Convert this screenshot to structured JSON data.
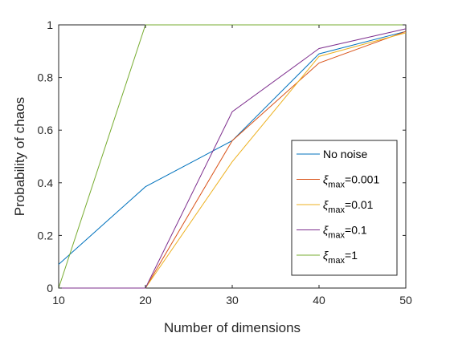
{
  "chart_data": {
    "type": "line",
    "xlabel": "Number of dimensions",
    "ylabel": "Probability of chaos",
    "xlim": [
      10,
      50
    ],
    "ylim": [
      0,
      1
    ],
    "xticks": [
      "10",
      "20",
      "30",
      "40",
      "50"
    ],
    "yticks": [
      "0",
      "0.2",
      "0.4",
      "0.6",
      "0.8",
      "1"
    ],
    "x": [
      10,
      20,
      30,
      40,
      50
    ],
    "grid": false,
    "legend_position": "bottom-right",
    "series": [
      {
        "name": "No noise",
        "color": "#0072BD",
        "values": [
          0.09,
          0.385,
          0.56,
          0.89,
          0.975
        ]
      },
      {
        "name": "ξmax=0.001",
        "legend_sym": "ξ",
        "legend_sub": "max",
        "legend_rest": "=0.001",
        "color": "#D95319",
        "values": [
          0,
          0,
          0.56,
          0.855,
          0.975
        ]
      },
      {
        "name": "ξmax=0.01",
        "legend_sym": "ξ",
        "legend_sub": "max",
        "legend_rest": "=0.01",
        "color": "#EDB120",
        "values": [
          0,
          0,
          0.48,
          0.88,
          0.97
        ]
      },
      {
        "name": "ξmax=0.1",
        "legend_sym": "ξ",
        "legend_sub": "max",
        "legend_rest": "=0.1",
        "color": "#7E2F8E",
        "values": [
          0,
          0,
          0.67,
          0.91,
          0.985
        ]
      },
      {
        "name": "ξmax=1",
        "legend_sym": "ξ",
        "legend_sub": "max",
        "legend_rest": "=1",
        "color": "#77AC30",
        "values": [
          0,
          1,
          1,
          1,
          1
        ]
      }
    ]
  }
}
